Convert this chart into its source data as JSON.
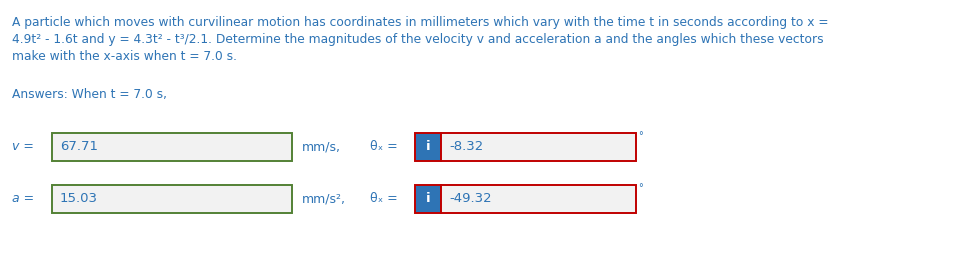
{
  "line1": "A particle which moves with curvilinear motion has coordinates in millimeters which vary with the time t in seconds according to x =",
  "line2": "4.9t² - 1.6t and y = 4.3t² - t³/2.1. Determine the magnitudes of the velocity v and acceleration a and the angles which these vectors",
  "line3": "make with the x-axis when t = 7.0 s.",
  "answers_label": "Answers: When t = 7.0 s,",
  "v_label": "v =",
  "v_value": "67.71",
  "v_unit": "mm/s,",
  "v_theta_label": "θₓ =",
  "v_theta_value": "-8.32",
  "a_label": "a =",
  "a_value": "15.03",
  "a_unit": "mm/s²,",
  "a_theta_label": "θₓ =",
  "a_theta_value": "-49.32",
  "text_color": "#2E74B5",
  "box_border_green": "#538135",
  "box_border_red": "#C00000",
  "box_bg_light": "#F2F2F2",
  "box_bg_blue": "#2E74B5",
  "degree_symbol": "°",
  "fig_bg": "#FFFFFF"
}
